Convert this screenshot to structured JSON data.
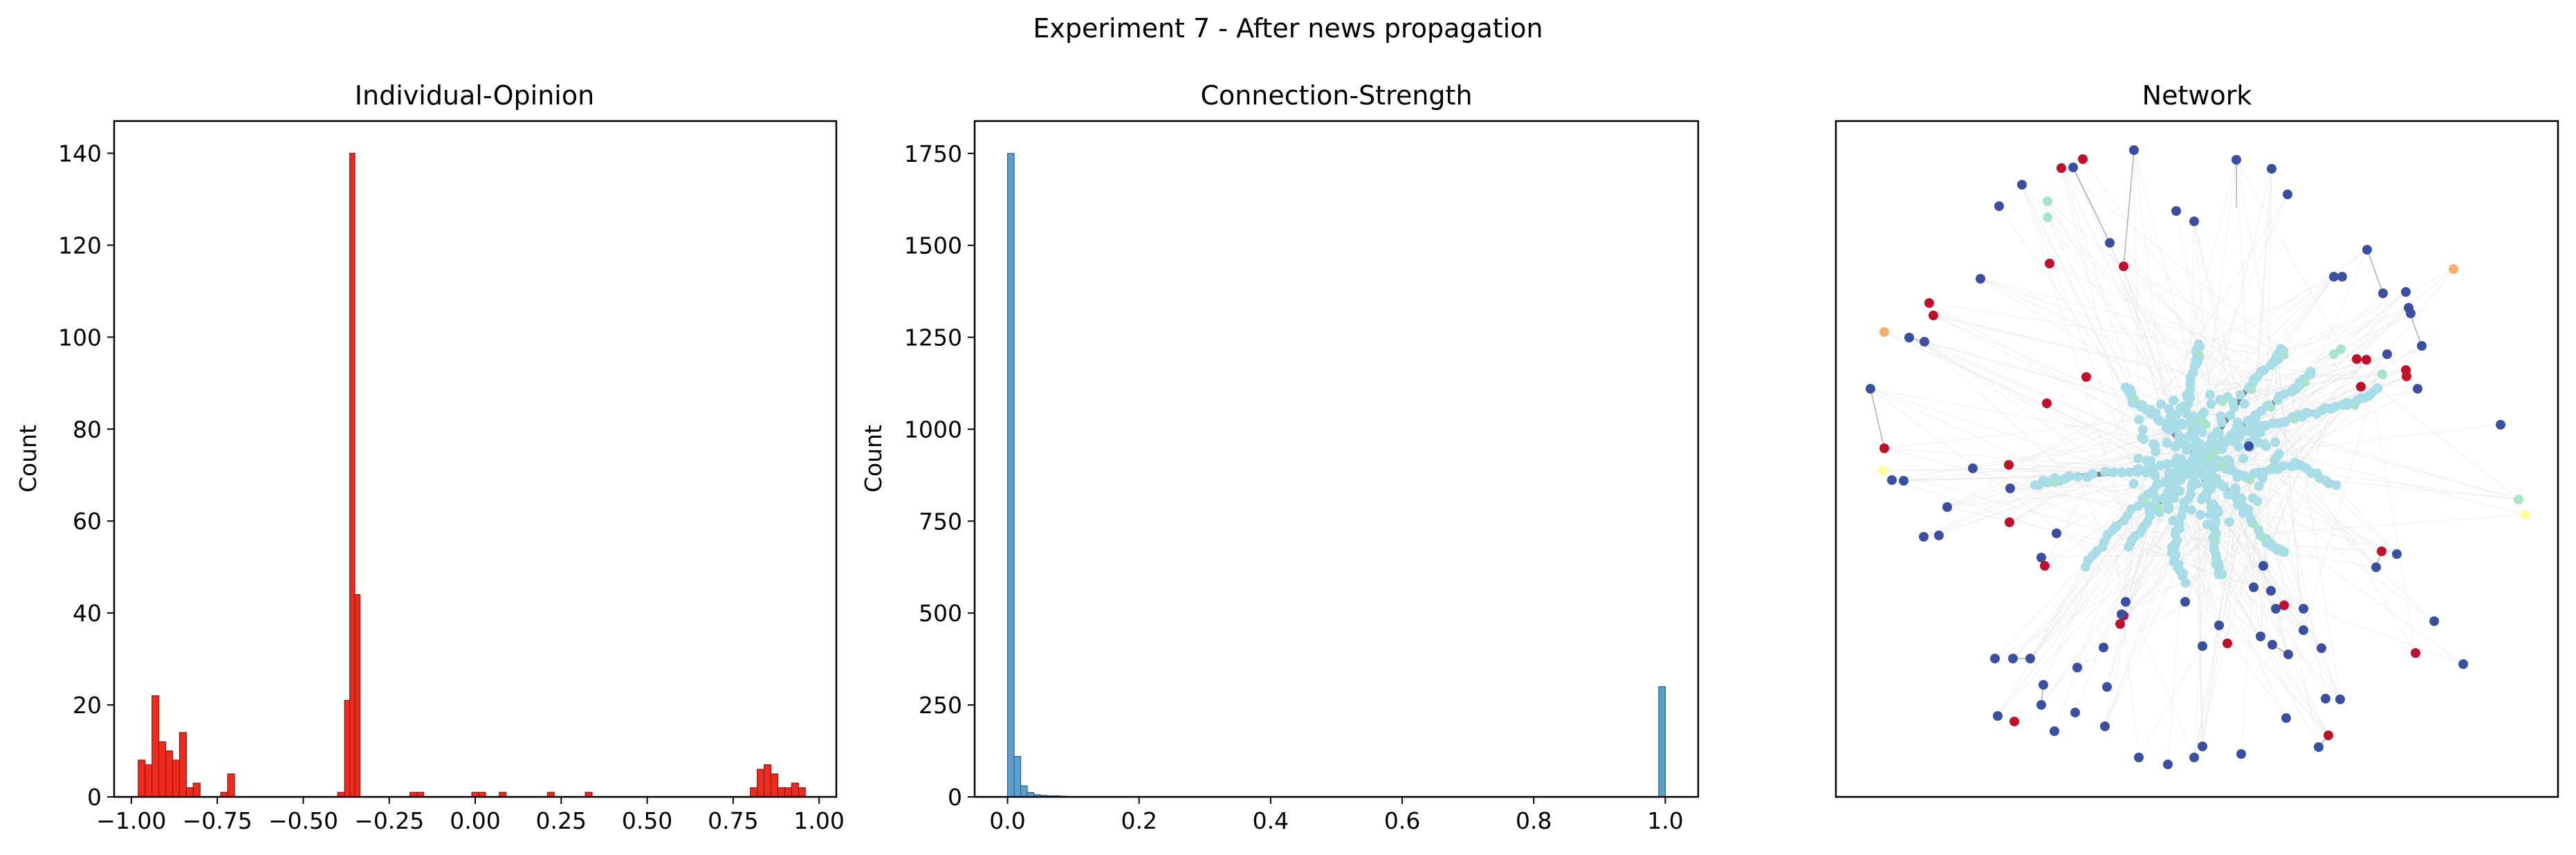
{
  "figure": {
    "suptitle": "Experiment 7 - After news propagation"
  },
  "chart_data": [
    {
      "type": "histogram",
      "title": "Individual-Opinion",
      "xlabel": "",
      "ylabel": "Count",
      "xlim": [
        -1.05,
        1.05
      ],
      "ylim": [
        0,
        147
      ],
      "xticks": [
        -1.0,
        -0.75,
        -0.5,
        -0.25,
        0.0,
        0.25,
        0.5,
        0.75,
        1.0
      ],
      "xtick_labels": [
        "−1.00",
        "−0.75",
        "−0.50",
        "−0.25",
        "0.00",
        "0.25",
        "0.50",
        "0.75",
        "1.00"
      ],
      "yticks": [
        0,
        20,
        40,
        60,
        80,
        100,
        120,
        140
      ],
      "ytick_labels": [
        "0",
        "20",
        "40",
        "60",
        "80",
        "100",
        "120",
        "140"
      ],
      "color": "#ee2b1f",
      "edge_color": "#8b1a12",
      "bins": [
        {
          "x0": -0.98,
          "x1": -0.96,
          "count": 8
        },
        {
          "x0": -0.96,
          "x1": -0.94,
          "count": 7
        },
        {
          "x0": -0.94,
          "x1": -0.92,
          "count": 22
        },
        {
          "x0": -0.92,
          "x1": -0.9,
          "count": 12
        },
        {
          "x0": -0.9,
          "x1": -0.88,
          "count": 10
        },
        {
          "x0": -0.88,
          "x1": -0.86,
          "count": 8
        },
        {
          "x0": -0.86,
          "x1": -0.84,
          "count": 14
        },
        {
          "x0": -0.84,
          "x1": -0.82,
          "count": 2
        },
        {
          "x0": -0.82,
          "x1": -0.8,
          "count": 3
        },
        {
          "x0": -0.74,
          "x1": -0.72,
          "count": 1
        },
        {
          "x0": -0.72,
          "x1": -0.7,
          "count": 5
        },
        {
          "x0": -0.4,
          "x1": -0.38,
          "count": 1
        },
        {
          "x0": -0.38,
          "x1": -0.365,
          "count": 21
        },
        {
          "x0": -0.365,
          "x1": -0.35,
          "count": 140
        },
        {
          "x0": -0.35,
          "x1": -0.335,
          "count": 44
        },
        {
          "x0": -0.19,
          "x1": -0.17,
          "count": 1
        },
        {
          "x0": -0.17,
          "x1": -0.15,
          "count": 1
        },
        {
          "x0": -0.01,
          "x1": 0.01,
          "count": 1
        },
        {
          "x0": 0.01,
          "x1": 0.03,
          "count": 1
        },
        {
          "x0": 0.07,
          "x1": 0.09,
          "count": 1
        },
        {
          "x0": 0.21,
          "x1": 0.23,
          "count": 1
        },
        {
          "x0": 0.32,
          "x1": 0.34,
          "count": 1
        },
        {
          "x0": 0.8,
          "x1": 0.82,
          "count": 2
        },
        {
          "x0": 0.82,
          "x1": 0.84,
          "count": 6
        },
        {
          "x0": 0.84,
          "x1": 0.86,
          "count": 7
        },
        {
          "x0": 0.86,
          "x1": 0.88,
          "count": 5
        },
        {
          "x0": 0.88,
          "x1": 0.9,
          "count": 2
        },
        {
          "x0": 0.9,
          "x1": 0.92,
          "count": 2
        },
        {
          "x0": 0.92,
          "x1": 0.94,
          "count": 3
        },
        {
          "x0": 0.94,
          "x1": 0.96,
          "count": 2
        }
      ]
    },
    {
      "type": "histogram",
      "title": "Connection-Strength",
      "xlabel": "",
      "ylabel": "Count",
      "xlim": [
        -0.05,
        1.05
      ],
      "ylim": [
        0,
        1838
      ],
      "xticks": [
        0.0,
        0.2,
        0.4,
        0.6,
        0.8,
        1.0
      ],
      "xtick_labels": [
        "0.0",
        "0.2",
        "0.4",
        "0.6",
        "0.8",
        "1.0"
      ],
      "yticks": [
        0,
        250,
        500,
        750,
        1000,
        1250,
        1500,
        1750
      ],
      "ytick_labels": [
        "0",
        "250",
        "500",
        "750",
        "1000",
        "1250",
        "1500",
        "1750"
      ],
      "color": "#5da0cf",
      "edge_color": "#2f5f80",
      "bins": [
        {
          "x0": 0.0,
          "x1": 0.01,
          "count": 1750
        },
        {
          "x0": 0.01,
          "x1": 0.02,
          "count": 110
        },
        {
          "x0": 0.02,
          "x1": 0.03,
          "count": 30
        },
        {
          "x0": 0.03,
          "x1": 0.04,
          "count": 12
        },
        {
          "x0": 0.04,
          "x1": 0.05,
          "count": 6
        },
        {
          "x0": 0.05,
          "x1": 0.06,
          "count": 4
        },
        {
          "x0": 0.06,
          "x1": 0.07,
          "count": 3
        },
        {
          "x0": 0.07,
          "x1": 0.08,
          "count": 3
        },
        {
          "x0": 0.08,
          "x1": 0.09,
          "count": 2
        },
        {
          "x0": 0.99,
          "x1": 1.0,
          "count": 300
        }
      ]
    },
    {
      "type": "network",
      "title": "Network",
      "node_colors": {
        "hub": "#a8dce6",
        "blue": "#3b4fa0",
        "red": "#c3102a",
        "light_green": "#a9e3c8",
        "orange": "#f6b06a",
        "yellow": "#ffff99"
      },
      "edge_colors": {
        "strong": "#7a7a7a",
        "weak": "#e6e6e6"
      }
    }
  ]
}
